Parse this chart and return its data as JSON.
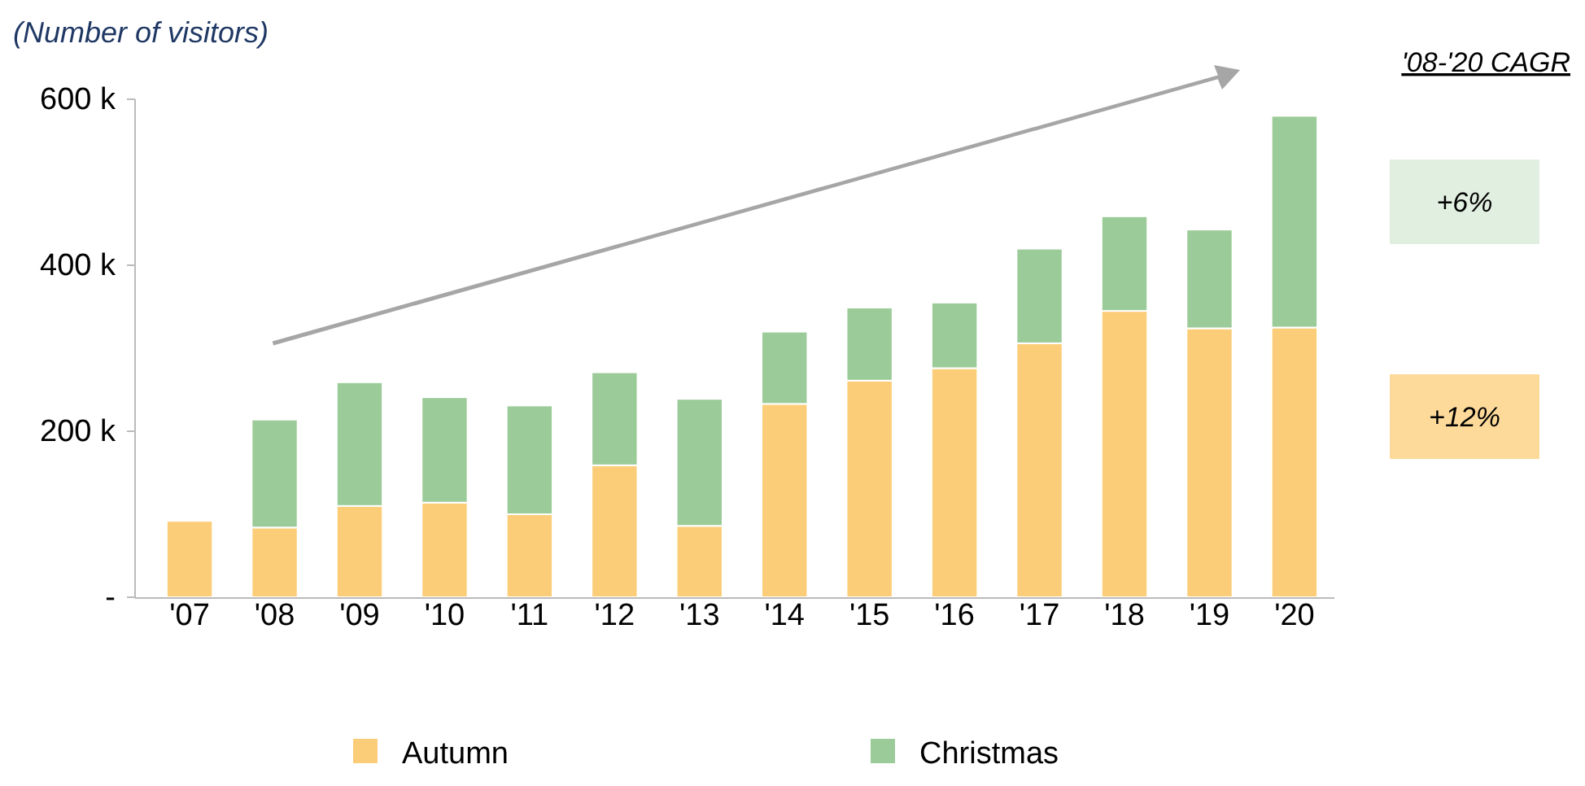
{
  "chart_data": {
    "type": "bar",
    "stacked": true,
    "ylabel": "(Number of visitors)",
    "categories": [
      "'07",
      "'08",
      "'09",
      "'10",
      "'11",
      "'12",
      "'13",
      "'14",
      "'15",
      "'16",
      "'17",
      "'18",
      "'19",
      "'20"
    ],
    "series": [
      {
        "name": "Autumn",
        "color": "#fccd78",
        "values": [
          92000,
          84000,
          110000,
          114000,
          100000,
          159000,
          86000,
          233000,
          261000,
          276000,
          306000,
          345000,
          324000,
          325000
        ]
      },
      {
        "name": "Christmas",
        "color": "#9bcb98",
        "values": [
          null,
          130000,
          149000,
          127000,
          131000,
          112000,
          153000,
          87000,
          88000,
          79000,
          114000,
          114000,
          119000,
          255000
        ]
      }
    ],
    "ylim": [
      0,
      600000
    ],
    "yticks": [
      {
        "value": 0,
        "label": "-"
      },
      {
        "value": 200000,
        "label": "200 k"
      },
      {
        "value": 400000,
        "label": "400 k"
      },
      {
        "value": 600000,
        "label": "600 k"
      }
    ],
    "grid": false,
    "legend": "bottom",
    "annotations": [
      "'08-'20 CAGR",
      "+6%",
      "+12%"
    ]
  }
}
